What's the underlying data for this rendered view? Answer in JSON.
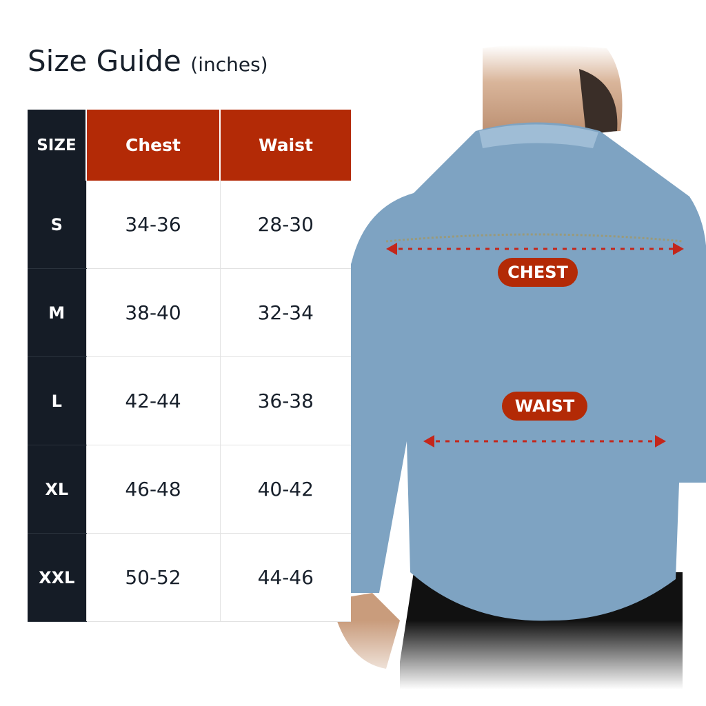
{
  "title": {
    "main": "Size Guide",
    "unit": "(inches)"
  },
  "table": {
    "headers": [
      "SIZE",
      "Chest",
      "Waist"
    ],
    "rows": [
      {
        "size": "S",
        "chest": "34-36",
        "waist": "28-30"
      },
      {
        "size": "M",
        "chest": "38-40",
        "waist": "32-34"
      },
      {
        "size": "L",
        "chest": "42-44",
        "waist": "36-38"
      },
      {
        "size": "XL",
        "chest": "46-48",
        "waist": "40-42"
      },
      {
        "size": "XXL",
        "chest": "50-52",
        "waist": "44-46"
      }
    ]
  },
  "labels": {
    "chest": "CHEST",
    "waist": "WAIST"
  },
  "colors": {
    "accent": "#b32a06",
    "dark": "#151c26",
    "denim": "#7ea3c2"
  }
}
